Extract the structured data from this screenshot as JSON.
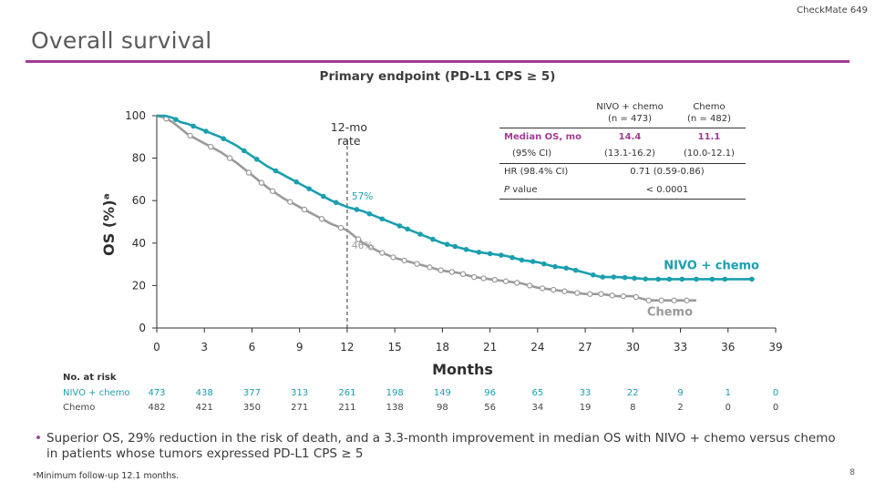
{
  "corner_tag": "CheckMate 649",
  "title": "Overall survival",
  "subtitle": "Primary endpoint (PD-L1 CPS ≥ 5)",
  "page_number": "8",
  "footnote": "ᵃMinimum follow-up 12.1 months.",
  "bullet": "Superior OS, 29% reduction in the risk of death, and a 3.3-month improvement in median OS with NIVO + chemo versus chemo in patients whose tumors expressed PD-L1 CPS ≥ 5",
  "colors": {
    "accent": "#a23b95",
    "nivo": "#1a9fae",
    "chemo": "#9a9a9a",
    "median_row": "#a23b95"
  },
  "stats_table": {
    "col1_header": [
      "NIVO + chemo",
      "(n = 473)"
    ],
    "col2_header": [
      "Chemo",
      "(n = 482)"
    ],
    "median_label": "Median OS, mo",
    "median_nivo": "14.4",
    "median_chemo": "11.1",
    "ci_label": "(95% CI)",
    "ci_nivo": "(13.1-16.2)",
    "ci_chemo": "(10.0-12.1)",
    "hr_label": "HR (98.4% CI)",
    "hr_value": "0.71 (0.59-0.86)",
    "p_label_italic": "P",
    "p_label_rest": " value",
    "p_value": "< 0.0001"
  },
  "risk_table": {
    "header": "No. at risk",
    "nivo_label": "NIVO + chemo",
    "chemo_label": "Chemo",
    "nivo": [
      473,
      438,
      377,
      313,
      261,
      198,
      149,
      96,
      65,
      33,
      22,
      9,
      1,
      0
    ],
    "chemo": [
      482,
      421,
      350,
      271,
      211,
      138,
      98,
      56,
      34,
      19,
      8,
      2,
      0,
      0
    ]
  },
  "chart_data": {
    "type": "line",
    "xlabel": "Months",
    "ylabel": "OS (%)ᵃ",
    "xlim": [
      0,
      39
    ],
    "ylim": [
      0,
      100
    ],
    "xticks": [
      0,
      3,
      6,
      9,
      12,
      15,
      18,
      21,
      24,
      27,
      30,
      33,
      36,
      39
    ],
    "yticks": [
      0,
      20,
      40,
      60,
      80,
      100
    ],
    "vline": {
      "x": 12,
      "label_line1": "12-mo",
      "label_line2": "rate"
    },
    "annotations": [
      {
        "text": "57%",
        "x": 12.3,
        "y": 57,
        "series": "NIVO + chemo"
      },
      {
        "text": "46%",
        "x": 12.3,
        "y": 46,
        "series": "Chemo"
      }
    ],
    "series": [
      {
        "name": "NIVO + chemo",
        "points": [
          [
            0,
            100
          ],
          [
            0.5,
            100
          ],
          [
            1,
            99
          ],
          [
            1.5,
            97
          ],
          [
            2,
            96
          ],
          [
            3,
            93
          ],
          [
            4,
            90
          ],
          [
            5,
            86
          ],
          [
            6,
            81
          ],
          [
            7,
            76
          ],
          [
            8,
            72
          ],
          [
            9,
            68
          ],
          [
            10,
            64
          ],
          [
            11,
            60
          ],
          [
            12,
            57
          ],
          [
            13,
            55
          ],
          [
            14,
            52
          ],
          [
            15,
            49
          ],
          [
            16,
            46
          ],
          [
            17,
            43
          ],
          [
            18,
            40
          ],
          [
            19,
            38
          ],
          [
            20,
            36
          ],
          [
            21,
            35
          ],
          [
            22,
            34
          ],
          [
            23,
            32
          ],
          [
            24,
            31
          ],
          [
            25,
            29
          ],
          [
            26,
            28
          ],
          [
            27,
            26
          ],
          [
            28,
            24
          ],
          [
            29,
            24
          ],
          [
            30,
            23.5
          ],
          [
            31,
            23
          ],
          [
            32,
            23
          ],
          [
            33,
            23
          ],
          [
            34,
            23
          ],
          [
            35,
            23
          ],
          [
            36,
            23
          ],
          [
            37.5,
            23
          ]
        ],
        "censor_x": [
          1.2,
          2.3,
          3.1,
          4.2,
          5.5,
          6.3,
          7.5,
          8.8,
          9.6,
          10.5,
          11.3,
          12.6,
          13.4,
          14.2,
          15.3,
          15.8,
          16.6,
          17.4,
          18.3,
          18.8,
          19.5,
          20.3,
          21,
          21.7,
          22.4,
          23,
          23.7,
          24.4,
          25.1,
          25.8,
          26.4,
          27.5,
          28.1,
          28.8,
          29.5,
          30.1,
          30.8,
          31.6,
          32.3,
          33.1,
          34,
          35,
          35.8,
          37.5
        ]
      },
      {
        "name": "Chemo",
        "points": [
          [
            0,
            100
          ],
          [
            0.5,
            99
          ],
          [
            1,
            97
          ],
          [
            1.5,
            94
          ],
          [
            2,
            91
          ],
          [
            3,
            87
          ],
          [
            4,
            83
          ],
          [
            5,
            78
          ],
          [
            6,
            72
          ],
          [
            7,
            66
          ],
          [
            8,
            61
          ],
          [
            9,
            57
          ],
          [
            10,
            53
          ],
          [
            11,
            49
          ],
          [
            12,
            46
          ],
          [
            13,
            40
          ],
          [
            14,
            36
          ],
          [
            15,
            33
          ],
          [
            16,
            31
          ],
          [
            17,
            29
          ],
          [
            18,
            27
          ],
          [
            19,
            26
          ],
          [
            20,
            24
          ],
          [
            21,
            23
          ],
          [
            22,
            22
          ],
          [
            23,
            21
          ],
          [
            24,
            19
          ],
          [
            25,
            18
          ],
          [
            26,
            17
          ],
          [
            27,
            16
          ],
          [
            28,
            16
          ],
          [
            29,
            15
          ],
          [
            30,
            15
          ],
          [
            31,
            13
          ],
          [
            32,
            13
          ],
          [
            33,
            13
          ],
          [
            34,
            13
          ]
        ],
        "censor_x": [
          0.6,
          2.1,
          3.4,
          4.6,
          5.8,
          6.6,
          7.3,
          8.4,
          9.3,
          10.4,
          11.6,
          12.7,
          13.5,
          14.2,
          14.9,
          15.6,
          16.4,
          17.2,
          17.9,
          18.6,
          19.3,
          20,
          20.6,
          21.3,
          22,
          22.7,
          23.5,
          24.3,
          25,
          25.7,
          26.5,
          27.3,
          28,
          28.7,
          29.4,
          30.2,
          31,
          31.8,
          32.6,
          33.4
        ]
      }
    ]
  }
}
